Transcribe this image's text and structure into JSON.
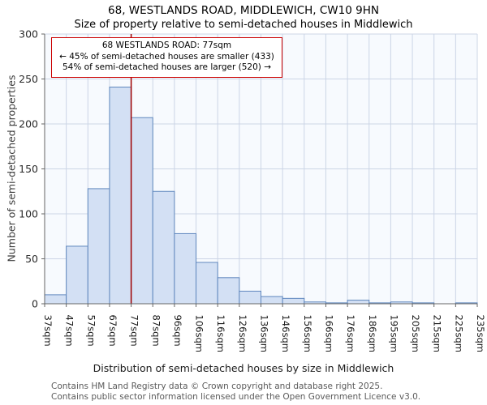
{
  "title": "68, WESTLANDS ROAD, MIDDLEWICH, CW10 9HN",
  "subtitle": "Size of property relative to semi-detached houses in Middlewich",
  "annotation": {
    "lines": [
      "68 WESTLANDS ROAD: 77sqm",
      "← 45% of semi-detached houses are smaller (433)",
      "54% of semi-detached houses are larger (520) →"
    ]
  },
  "footer": {
    "line1": "Contains HM Land Registry data © Crown copyright and database right 2025.",
    "line2": "Contains public sector information licensed under the Open Government Licence v3.0."
  },
  "chart_data": {
    "type": "bar",
    "title": "68, WESTLANDS ROAD, MIDDLEWICH, CW10 9HN — Size of property relative to semi-detached houses in Middlewich",
    "xlabel": "Distribution of semi-detached houses by size in Middlewich",
    "ylabel": "Number of semi-detached properties",
    "categories": [
      "37sqm",
      "47sqm",
      "57sqm",
      "67sqm",
      "77sqm",
      "87sqm",
      "96sqm",
      "106sqm",
      "116sqm",
      "126sqm",
      "136sqm",
      "146sqm",
      "156sqm",
      "166sqm",
      "176sqm",
      "186sqm",
      "195sqm",
      "205sqm",
      "215sqm",
      "225sqm",
      "235sqm"
    ],
    "values": [
      10,
      64,
      128,
      241,
      207,
      125,
      78,
      46,
      29,
      14,
      8,
      6,
      2,
      1,
      4,
      1,
      2,
      1,
      0,
      1
    ],
    "values_align": "between-ticks",
    "ylim": [
      0,
      300
    ],
    "yticks": [
      0,
      50,
      100,
      150,
      200,
      250,
      300
    ],
    "grid": "on",
    "legend": "none",
    "marker": {
      "label": "77sqm",
      "category_index": 4
    },
    "colors": {
      "bar_fill": "#d3e0f4",
      "bar_stroke": "#5f87bd",
      "marker": "#a00000",
      "grid": "#ccd5e6",
      "plot_bg": "#f7fafe",
      "axis": "#666666",
      "annotation_border": "#cc0000"
    }
  }
}
